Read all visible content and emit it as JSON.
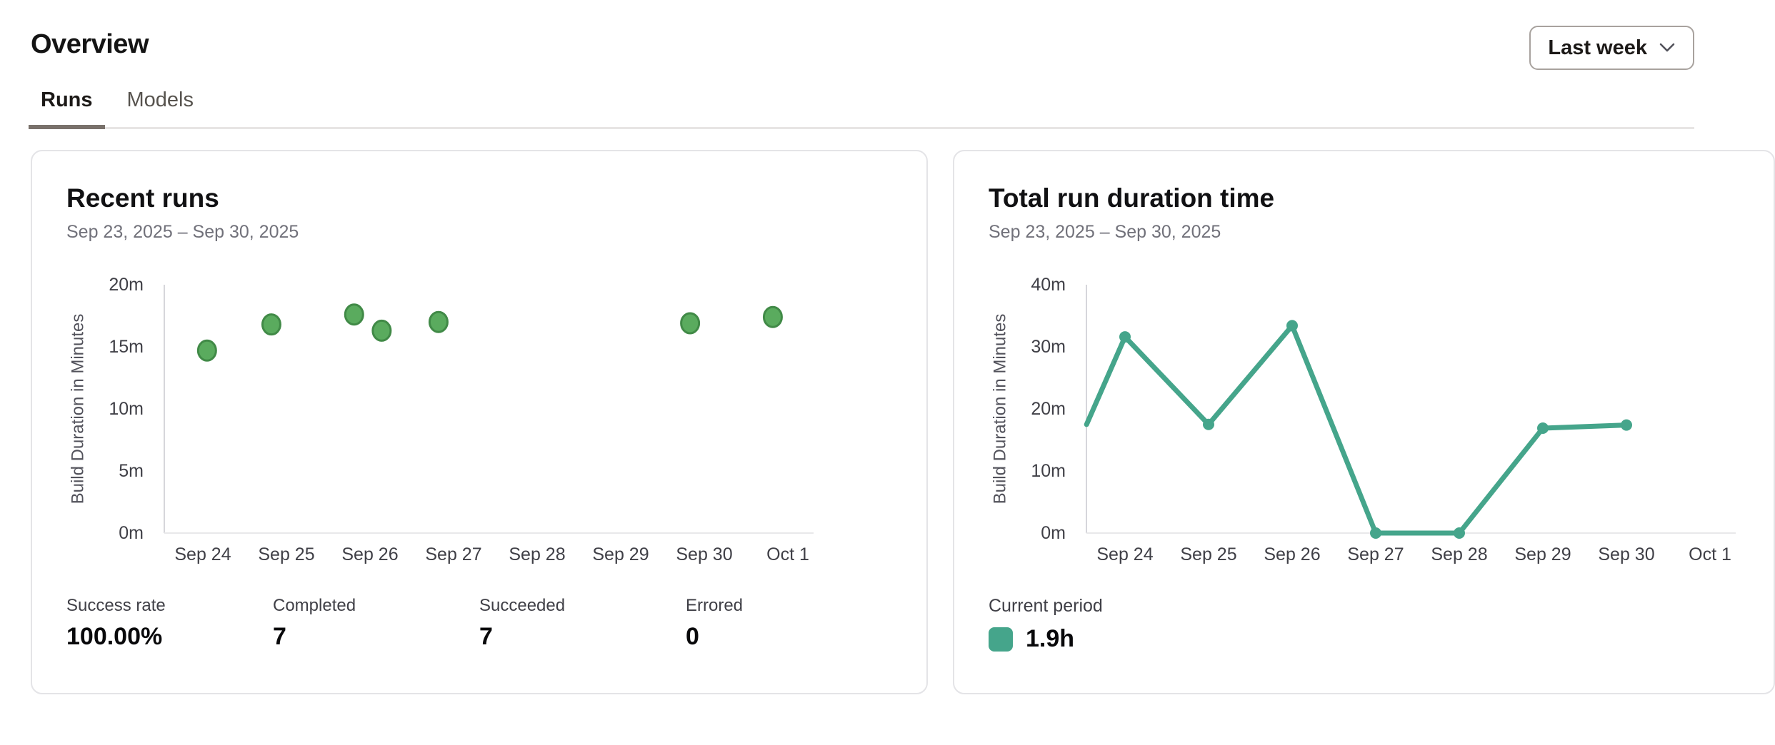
{
  "page": {
    "title": "Overview"
  },
  "period_selector": {
    "label": "Last week"
  },
  "tabs": [
    {
      "label": "Runs",
      "active": true
    },
    {
      "label": "Models",
      "active": false
    }
  ],
  "cards": [
    {
      "title": "Recent runs",
      "date_range": "Sep 23, 2025 – Sep 30, 2025",
      "stats": [
        {
          "label": "Success rate",
          "value": "100.00%"
        },
        {
          "label": "Completed",
          "value": "7"
        },
        {
          "label": "Succeeded",
          "value": "7"
        },
        {
          "label": "Errored",
          "value": "0"
        }
      ]
    },
    {
      "title": "Total run duration time",
      "date_range": "Sep 23, 2025 – Sep 30, 2025",
      "legend": {
        "label": "Current period",
        "value": "1.9h",
        "swatch_color": "#45a58b"
      }
    }
  ],
  "chart_data": [
    {
      "type": "scatter",
      "title": "Recent runs",
      "ylabel": "Build Duration in Minutes",
      "ylim": [
        0,
        20
      ],
      "x_ticks": [
        "Sep 24",
        "Sep 25",
        "Sep 26",
        "Sep 27",
        "Sep 28",
        "Sep 29",
        "Sep 30",
        "Oct 1"
      ],
      "y_ticks": [
        {
          "label": "0m",
          "value": 0
        },
        {
          "label": "5m",
          "value": 5
        },
        {
          "label": "10m",
          "value": 10
        },
        {
          "label": "15m",
          "value": 15
        },
        {
          "label": "20m",
          "value": 20
        }
      ],
      "point_color": "#5aab5e",
      "point_border": "#418a47",
      "points": [
        {
          "day": 0.05,
          "minutes": 14.7
        },
        {
          "day": 0.82,
          "minutes": 16.8
        },
        {
          "day": 1.81,
          "minutes": 17.6
        },
        {
          "day": 2.14,
          "minutes": 16.3
        },
        {
          "day": 2.82,
          "minutes": 17.0
        },
        {
          "day": 5.83,
          "minutes": 16.9
        },
        {
          "day": 6.82,
          "minutes": 17.4
        }
      ]
    },
    {
      "type": "line",
      "title": "Total run duration time",
      "ylabel": "Build Duration in Minutes",
      "ylim": [
        0,
        40
      ],
      "x_ticks": [
        "Sep 24",
        "Sep 25",
        "Sep 26",
        "Sep 27",
        "Sep 28",
        "Sep 29",
        "Sep 30",
        "Oct 1"
      ],
      "y_ticks": [
        {
          "label": "0m",
          "value": 0
        },
        {
          "label": "10m",
          "value": 10
        },
        {
          "label": "20m",
          "value": 20
        },
        {
          "label": "30m",
          "value": 30
        },
        {
          "label": "40m",
          "value": 40
        }
      ],
      "line_color": "#45a58b",
      "points": [
        {
          "date": "Sep 23",
          "day": -0.46,
          "minutes": 17.5,
          "marker": false
        },
        {
          "date": "Sep 24",
          "day": 0,
          "minutes": 31.6
        },
        {
          "date": "Sep 25",
          "day": 1,
          "minutes": 17.5
        },
        {
          "date": "Sep 26",
          "day": 2,
          "minutes": 33.4
        },
        {
          "date": "Sep 27",
          "day": 3,
          "minutes": 0
        },
        {
          "date": "Sep 28",
          "day": 4,
          "minutes": 0
        },
        {
          "date": "Sep 29",
          "day": 5,
          "minutes": 16.9
        },
        {
          "date": "Sep 30",
          "day": 6,
          "minutes": 17.4
        }
      ]
    }
  ]
}
